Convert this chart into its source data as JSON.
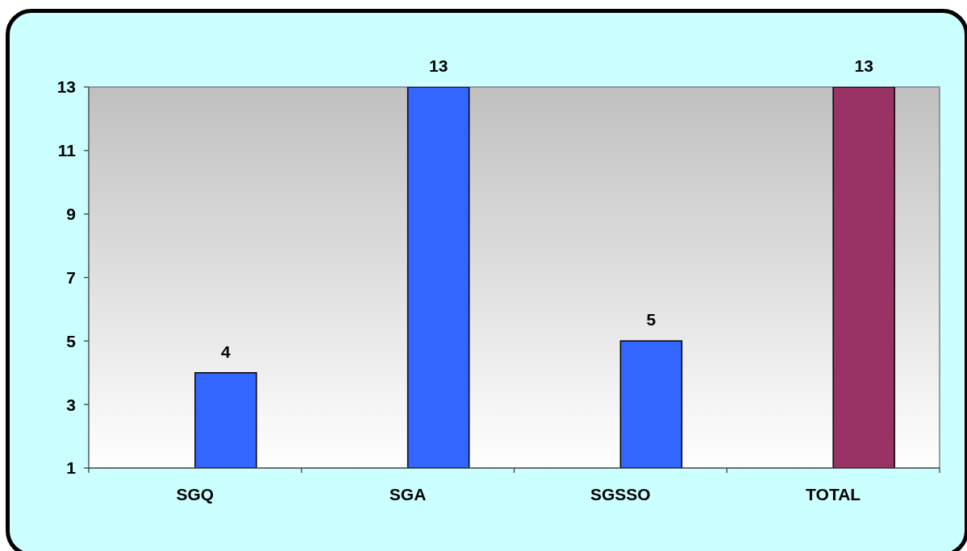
{
  "chart_data": {
    "type": "bar",
    "categories": [
      "SGQ",
      "SGA",
      "SGSSO",
      "TOTAL"
    ],
    "values": [
      4,
      13,
      5,
      13
    ],
    "colors": [
      "#3366ff",
      "#3366ff",
      "#3366ff",
      "#993366"
    ],
    "ylim": [
      1,
      13
    ],
    "yticks": [
      1,
      3,
      5,
      7,
      9,
      11,
      13
    ],
    "data_labels": true
  }
}
